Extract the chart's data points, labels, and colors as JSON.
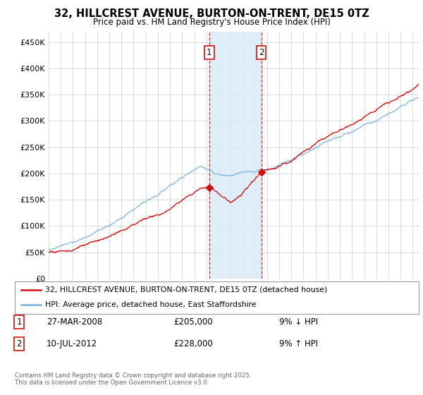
{
  "title": "32, HILLCREST AVENUE, BURTON-ON-TRENT, DE15 0TZ",
  "subtitle": "Price paid vs. HM Land Registry's House Price Index (HPI)",
  "ylabel_ticks": [
    "£0",
    "£50K",
    "£100K",
    "£150K",
    "£200K",
    "£250K",
    "£300K",
    "£350K",
    "£400K",
    "£450K"
  ],
  "ytick_values": [
    0,
    50000,
    100000,
    150000,
    200000,
    250000,
    300000,
    350000,
    400000,
    450000
  ],
  "ylim": [
    0,
    470000
  ],
  "xlim_start": 1995.0,
  "xlim_end": 2025.5,
  "hpi_color": "#7aaedc",
  "price_color": "#cc1111",
  "transaction1_date": "27-MAR-2008",
  "transaction1_price": 205000,
  "transaction1_price_str": "£205,000",
  "transaction1_pct": "9%",
  "transaction1_dir": "↓",
  "transaction2_date": "10-JUL-2012",
  "transaction2_price": 228000,
  "transaction2_price_str": "£228,000",
  "transaction2_pct": "9%",
  "transaction2_dir": "↑",
  "vline1_x": 2008.24,
  "vline2_x": 2012.53,
  "shade_color": "#d8eaf7",
  "legend_label1": "32, HILLCREST AVENUE, BURTON-ON-TRENT, DE15 0TZ (detached house)",
  "legend_label2": "HPI: Average price, detached house, East Staffordshire",
  "footnote": "Contains HM Land Registry data © Crown copyright and database right 2025.\nThis data is licensed under the Open Government Licence v3.0.",
  "background_color": "#ffffff",
  "grid_color": "#cccccc",
  "chart_bg": "#f8f8ff"
}
